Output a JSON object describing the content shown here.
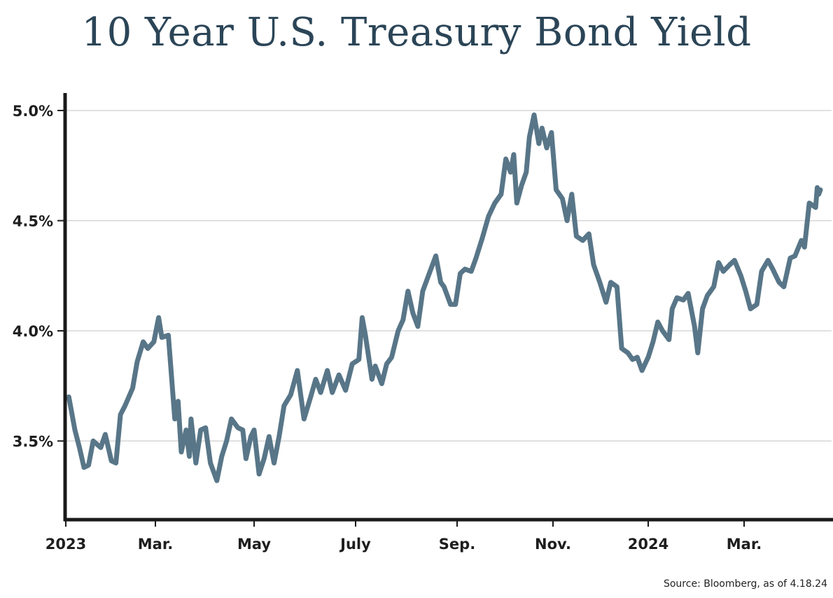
{
  "chart_data": {
    "type": "line",
    "title": "10 Year U.S. Treasury Bond Yield",
    "source": "Source: Bloomberg, as of 4.18.24",
    "xlabel": "",
    "ylabel": "",
    "ylim": [
      3.15,
      5.08
    ],
    "xlim": [
      "2023-01-01",
      "2024-04-18"
    ],
    "grid": "horizontal",
    "line_color": "#587688",
    "y_ticks": [
      {
        "value": 3.5,
        "label": "3.5%"
      },
      {
        "value": 4.0,
        "label": "4.0%"
      },
      {
        "value": 4.5,
        "label": "4.5%"
      },
      {
        "value": 5.0,
        "label": "5.0%"
      }
    ],
    "x_ticks": [
      {
        "date": "2023-01-01",
        "label": "2023"
      },
      {
        "date": "2023-03-01",
        "label": "Mar."
      },
      {
        "date": "2023-05-01",
        "label": "May"
      },
      {
        "date": "2023-07-01",
        "label": "July"
      },
      {
        "date": "2023-09-01",
        "label": "Sep."
      },
      {
        "date": "2023-11-01",
        "label": "Nov."
      },
      {
        "date": "2024-01-01",
        "label": "2024"
      },
      {
        "date": "2024-03-01",
        "label": "Mar."
      }
    ],
    "series": [
      {
        "x": [
          "2023-01-03",
          "2023-01-07",
          "2023-01-10",
          "2023-01-13",
          "2023-01-16",
          "2023-01-19",
          "2023-01-24",
          "2023-01-27",
          "2023-01-31",
          "2023-02-03",
          "2023-02-06",
          "2023-02-09",
          "2023-02-14",
          "2023-02-17",
          "2023-02-21",
          "2023-02-24",
          "2023-02-28",
          "2023-03-03",
          "2023-03-05",
          "2023-03-09",
          "2023-03-13",
          "2023-03-15",
          "2023-03-17",
          "2023-03-20",
          "2023-03-22",
          "2023-03-23",
          "2023-03-26",
          "2023-03-29",
          "2023-04-01",
          "2023-04-04",
          "2023-04-08",
          "2023-04-11",
          "2023-04-14",
          "2023-04-17",
          "2023-04-21",
          "2023-04-24",
          "2023-04-26",
          "2023-04-29",
          "2023-05-01",
          "2023-05-04",
          "2023-05-07",
          "2023-05-10",
          "2023-05-13",
          "2023-05-16",
          "2023-05-19",
          "2023-05-23",
          "2023-05-27",
          "2023-05-31",
          "2023-06-04",
          "2023-06-07",
          "2023-06-10",
          "2023-06-14",
          "2023-06-17",
          "2023-06-21",
          "2023-06-25",
          "2023-06-29",
          "2023-07-03",
          "2023-07-05",
          "2023-07-07",
          "2023-07-11",
          "2023-07-13",
          "2023-07-17",
          "2023-07-20",
          "2023-07-23",
          "2023-07-27",
          "2023-07-30",
          "2023-08-02",
          "2023-08-05",
          "2023-08-08",
          "2023-08-11",
          "2023-08-15",
          "2023-08-19",
          "2023-08-22",
          "2023-08-24",
          "2023-08-28",
          "2023-08-31",
          "2023-09-03",
          "2023-09-06",
          "2023-09-10",
          "2023-09-13",
          "2023-09-17",
          "2023-09-21",
          "2023-09-25",
          "2023-09-29",
          "2023-10-02",
          "2023-10-05",
          "2023-10-07",
          "2023-10-09",
          "2023-10-12",
          "2023-10-15",
          "2023-10-17",
          "2023-10-20",
          "2023-10-23",
          "2023-10-25",
          "2023-10-28",
          "2023-10-31",
          "2023-11-03",
          "2023-11-07",
          "2023-11-10",
          "2023-11-13",
          "2023-11-16",
          "2023-11-20",
          "2023-11-24",
          "2023-11-27",
          "2023-12-01",
          "2023-12-05",
          "2023-12-08",
          "2023-12-12",
          "2023-12-15",
          "2023-12-19",
          "2023-12-22",
          "2023-12-25",
          "2023-12-28",
          "2024-01-01",
          "2024-01-04",
          "2024-01-07",
          "2024-01-10",
          "2024-01-14",
          "2024-01-16",
          "2024-01-19",
          "2024-01-23",
          "2024-01-26",
          "2024-01-30",
          "2024-02-01",
          "2024-02-04",
          "2024-02-07",
          "2024-02-11",
          "2024-02-14",
          "2024-02-17",
          "2024-02-21",
          "2024-02-24",
          "2024-02-28",
          "2024-03-02",
          "2024-03-05",
          "2024-03-09",
          "2024-03-12",
          "2024-03-16",
          "2024-03-19",
          "2024-03-23",
          "2024-03-26",
          "2024-03-30",
          "2024-04-02",
          "2024-04-06",
          "2024-04-08",
          "2024-04-11",
          "2024-04-15",
          "2024-04-16",
          "2024-04-17",
          "2024-04-18"
        ],
        "values": [
          3.7,
          3.55,
          3.47,
          3.38,
          3.39,
          3.5,
          3.47,
          3.53,
          3.41,
          3.4,
          3.62,
          3.66,
          3.74,
          3.86,
          3.95,
          3.92,
          3.95,
          4.06,
          3.97,
          3.98,
          3.6,
          3.68,
          3.45,
          3.55,
          3.43,
          3.6,
          3.4,
          3.55,
          3.56,
          3.4,
          3.32,
          3.43,
          3.5,
          3.6,
          3.56,
          3.55,
          3.42,
          3.52,
          3.55,
          3.35,
          3.42,
          3.52,
          3.4,
          3.52,
          3.66,
          3.71,
          3.82,
          3.6,
          3.7,
          3.78,
          3.72,
          3.82,
          3.72,
          3.8,
          3.73,
          3.85,
          3.87,
          4.06,
          3.98,
          3.78,
          3.84,
          3.76,
          3.85,
          3.88,
          4.0,
          4.05,
          4.18,
          4.08,
          4.02,
          4.18,
          4.26,
          4.34,
          4.22,
          4.2,
          4.12,
          4.12,
          4.26,
          4.28,
          4.27,
          4.33,
          4.42,
          4.52,
          4.58,
          4.62,
          4.78,
          4.72,
          4.8,
          4.58,
          4.66,
          4.72,
          4.88,
          4.98,
          4.85,
          4.92,
          4.83,
          4.9,
          4.64,
          4.6,
          4.5,
          4.62,
          4.43,
          4.41,
          4.44,
          4.3,
          4.22,
          4.13,
          4.22,
          4.2,
          3.92,
          3.9,
          3.87,
          3.88,
          3.82,
          3.88,
          3.95,
          4.04,
          4.0,
          3.96,
          4.1,
          4.15,
          4.14,
          4.17,
          4.02,
          3.9,
          4.1,
          4.16,
          4.2,
          4.31,
          4.27,
          4.3,
          4.32,
          4.25,
          4.18,
          4.1,
          4.12,
          4.27,
          4.32,
          4.28,
          4.22,
          4.2,
          4.33,
          4.34,
          4.41,
          4.38,
          4.58,
          4.56,
          4.65,
          4.62,
          4.64
        ]
      }
    ]
  }
}
